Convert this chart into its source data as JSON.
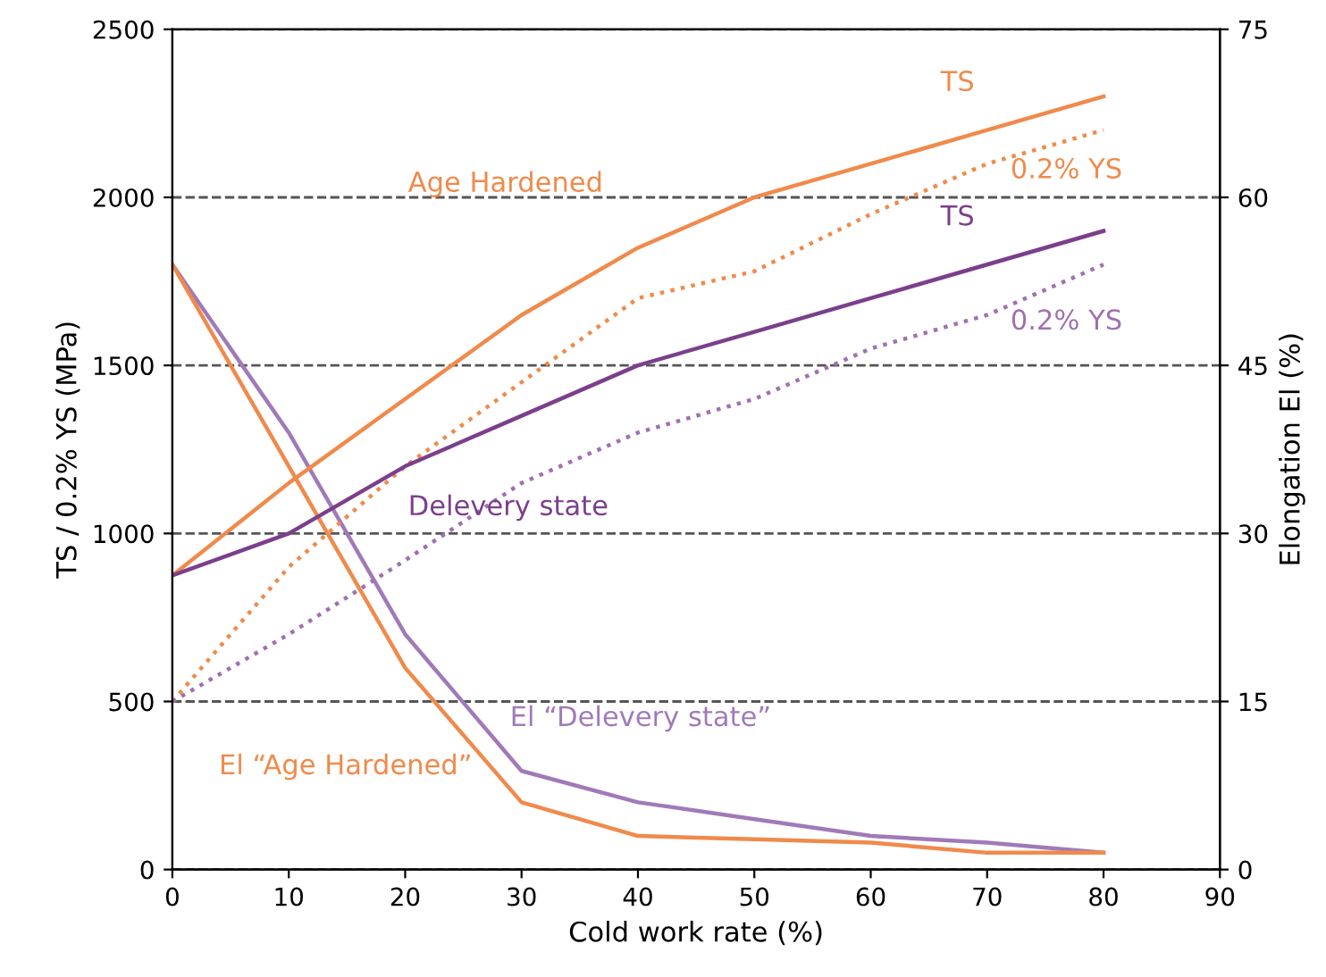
{
  "chart_data": {
    "type": "line",
    "xlabel": "Cold work rate (%)",
    "ylabel": "TS / 0.2% YS (MPa)",
    "y2label": "Elongation El (%)",
    "x": [
      0,
      10,
      20,
      30,
      40,
      50,
      60,
      70,
      80
    ],
    "xlim": [
      0,
      90
    ],
    "xticks": [
      0,
      10,
      20,
      30,
      40,
      50,
      60,
      70,
      80,
      90
    ],
    "ylim": [
      0,
      2500
    ],
    "yticks": [
      0,
      500,
      1000,
      1500,
      2000,
      2500
    ],
    "y2lim": [
      0,
      75
    ],
    "y2ticks": [
      0,
      15,
      30,
      45,
      60,
      75
    ],
    "grid": "y",
    "marker": "none",
    "series": [
      {
        "name": "TS",
        "color": "#f08a4b",
        "line_style": "solid",
        "values": [
          875,
          1150,
          1400,
          1650,
          1850,
          2000,
          2100,
          2200,
          2300
        ]
      },
      {
        "name": "0.2% YS",
        "color": "#f08a4b",
        "line_style": "dotted",
        "values": [
          500,
          900,
          1200,
          1450,
          1700,
          1780,
          1950,
          2100,
          2200
        ]
      },
      {
        "name": "TS",
        "color": "#7b3f8c",
        "line_style": "solid",
        "values": [
          875,
          1000,
          1200,
          1350,
          1500,
          1600,
          1700,
          1800,
          1900
        ]
      },
      {
        "name": "0.2% YS",
        "color": "#a070b0",
        "line_style": "dotted",
        "values": [
          500,
          700,
          920,
          1150,
          1300,
          1400,
          1550,
          1650,
          1800
        ]
      },
      {
        "name": "El “Delevery state”",
        "color": "#a07ab8",
        "line_style": "solid",
        "axis": "y2",
        "values": [
          54,
          39,
          21,
          8.8,
          6,
          4.5,
          3,
          2.4,
          1.5
        ]
      },
      {
        "name": "El “Age Hardened”",
        "color": "#f08a4b",
        "line_style": "solid",
        "axis": "y2",
        "values": [
          54,
          36,
          18,
          6,
          3,
          2.7,
          2.4,
          1.5,
          1.5
        ]
      }
    ],
    "annotations": [
      "Age Hardened",
      "Delevery state"
    ]
  }
}
